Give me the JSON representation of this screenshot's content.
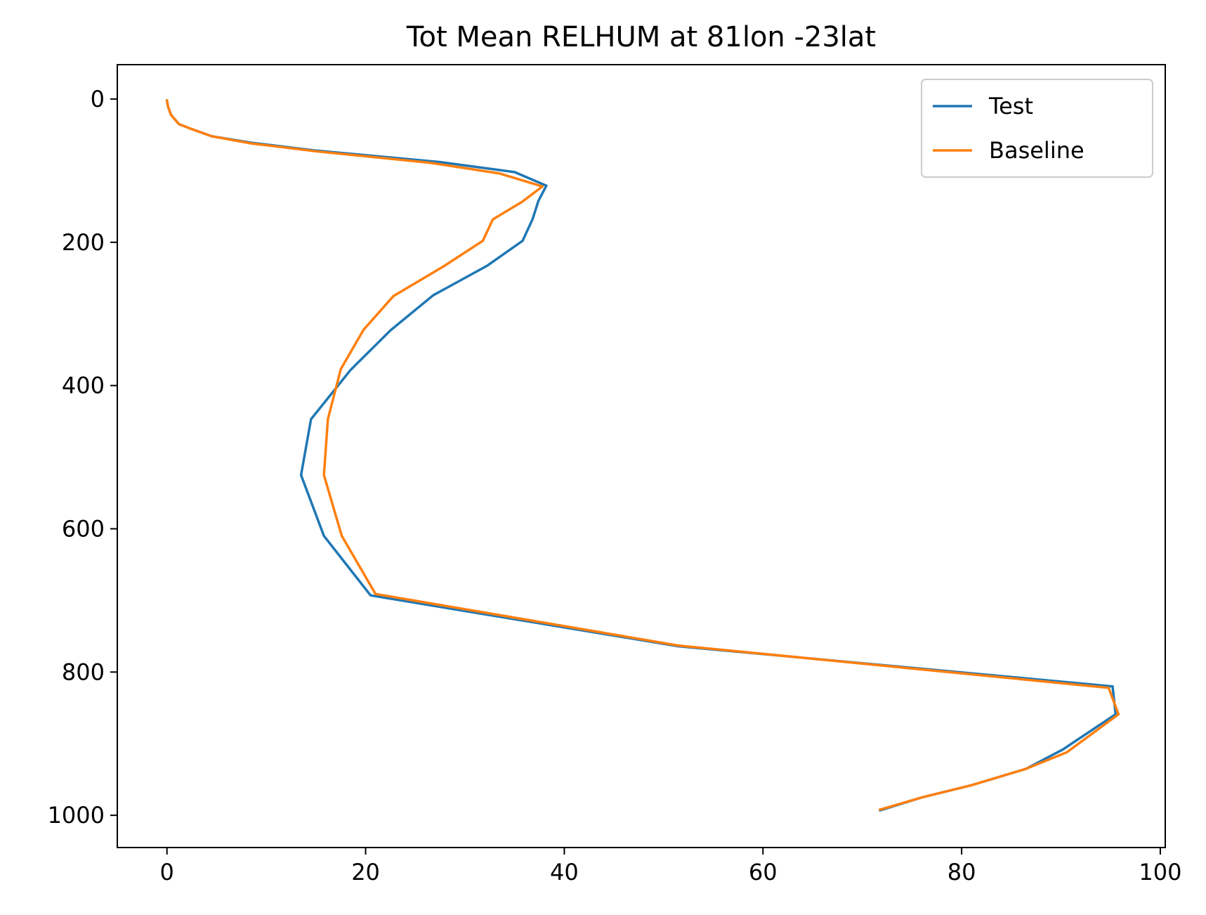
{
  "chart_data": {
    "type": "line",
    "title": "Tot Mean RELHUM at 81lon -23lat",
    "xlabel": "",
    "ylabel": "",
    "xlim": [
      -5,
      100.5
    ],
    "ylim": [
      1045,
      -48
    ],
    "y_inverted": true,
    "xticks": [
      0,
      20,
      40,
      60,
      80,
      100
    ],
    "yticks": [
      0,
      200,
      400,
      600,
      800,
      1000
    ],
    "grid": false,
    "legend_position": "top-right",
    "series": [
      {
        "name": "Test",
        "color": "#1f77b4",
        "x": [
          0.0,
          0.1,
          0.4,
          1.2,
          2.5,
          4.5,
          8.5,
          15.0,
          27.5,
          35.0,
          38.2,
          37.4,
          36.8,
          35.8,
          32.2,
          26.8,
          22.5,
          18.5,
          14.5,
          13.5,
          15.8,
          20.5,
          51.5,
          95.2,
          95.5,
          90.2,
          86.5,
          81.0,
          76.0,
          71.8
        ],
        "y": [
          2,
          10,
          22,
          35,
          42,
          52,
          61,
          72,
          88,
          102,
          121,
          142,
          168,
          198,
          233,
          274,
          323,
          378,
          447,
          525,
          610,
          693,
          764,
          820,
          859,
          908,
          935,
          958,
          975,
          993
        ]
      },
      {
        "name": "Baseline",
        "color": "#ff7f0e",
        "x": [
          0.0,
          0.1,
          0.4,
          1.2,
          2.5,
          4.5,
          8.5,
          15.0,
          26.5,
          33.5,
          37.8,
          35.8,
          32.8,
          31.8,
          27.8,
          22.8,
          19.8,
          17.5,
          16.2,
          15.8,
          17.6,
          21.0,
          51.5,
          94.8,
          95.8,
          90.6,
          86.5,
          81.0,
          76.0,
          71.8
        ],
        "y": [
          2,
          10,
          22,
          35,
          42,
          52,
          62,
          73,
          89,
          104,
          122,
          143,
          168,
          198,
          234,
          275,
          322,
          377,
          447,
          525,
          610,
          691,
          763,
          822,
          859,
          912,
          935,
          958,
          975,
          992
        ]
      }
    ]
  }
}
